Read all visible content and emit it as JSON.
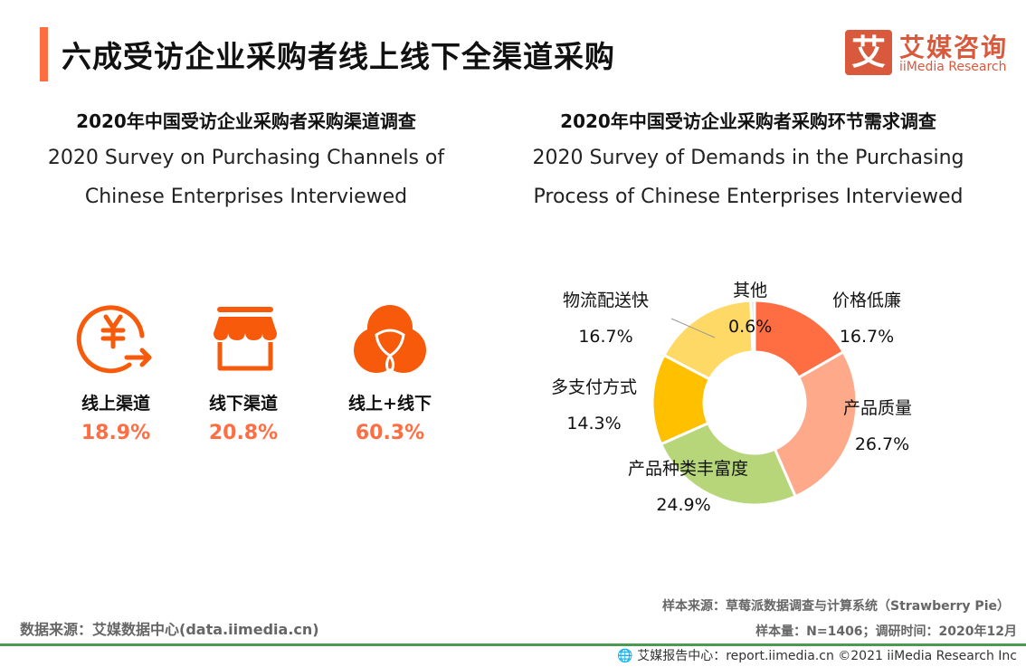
{
  "header": {
    "title": "六成受访企业采购者线上线下全渠道采购",
    "logo_icon_text": "艾",
    "logo_cn": "艾媒咨询",
    "logo_en": "iiMedia Research",
    "accent": "#FF6D42"
  },
  "left": {
    "title_cn": "2020年中国受访企业采购者采购渠道调查",
    "title_en_1": "2020 Survey on Purchasing Channels of",
    "title_en_2": "Chinese Enterprises Interviewed",
    "channels": [
      {
        "label": "线上渠道",
        "value": "18.9%",
        "icon": "yuan-transfer-icon"
      },
      {
        "label": "线下渠道",
        "value": "20.8%",
        "icon": "storefront-icon"
      },
      {
        "label": "线上+线下",
        "value": "60.3%",
        "icon": "venn-circles-icon"
      }
    ]
  },
  "chart_data": {
    "type": "pie",
    "donut": true,
    "title": "2020年中国受访企业采购者采购环节需求调查",
    "subtitle_1": "2020 Survey of Demands in the Purchasing",
    "subtitle_2": "Process of Chinese Enterprises Interviewed",
    "categories": [
      "价格低廉",
      "产品质量",
      "产品种类丰富度",
      "多支付方式",
      "物流配送快",
      "其他"
    ],
    "values": [
      16.7,
      26.7,
      24.9,
      14.3,
      16.7,
      0.6
    ],
    "labels": [
      "16.7%",
      "26.7%",
      "24.9%",
      "14.3%",
      "16.7%",
      "0.6%"
    ],
    "colors": [
      "#FF6D42",
      "#FFA98B",
      "#B7D67A",
      "#FFC000",
      "#FFD966",
      "#D9D9D9"
    ],
    "unit": "%"
  },
  "footer": {
    "data_source": "数据来源：艾媒数据中心(data.iimedia.cn)",
    "sample_source": "样本来源：草莓派数据调查与计算系统（Strawberry Pie）",
    "sample_size": "样本量：N=1406；调研时间：2020年12月",
    "report": "艾媒报告中心：report.iimedia.cn   ©2021  iiMedia Research  Inc"
  }
}
